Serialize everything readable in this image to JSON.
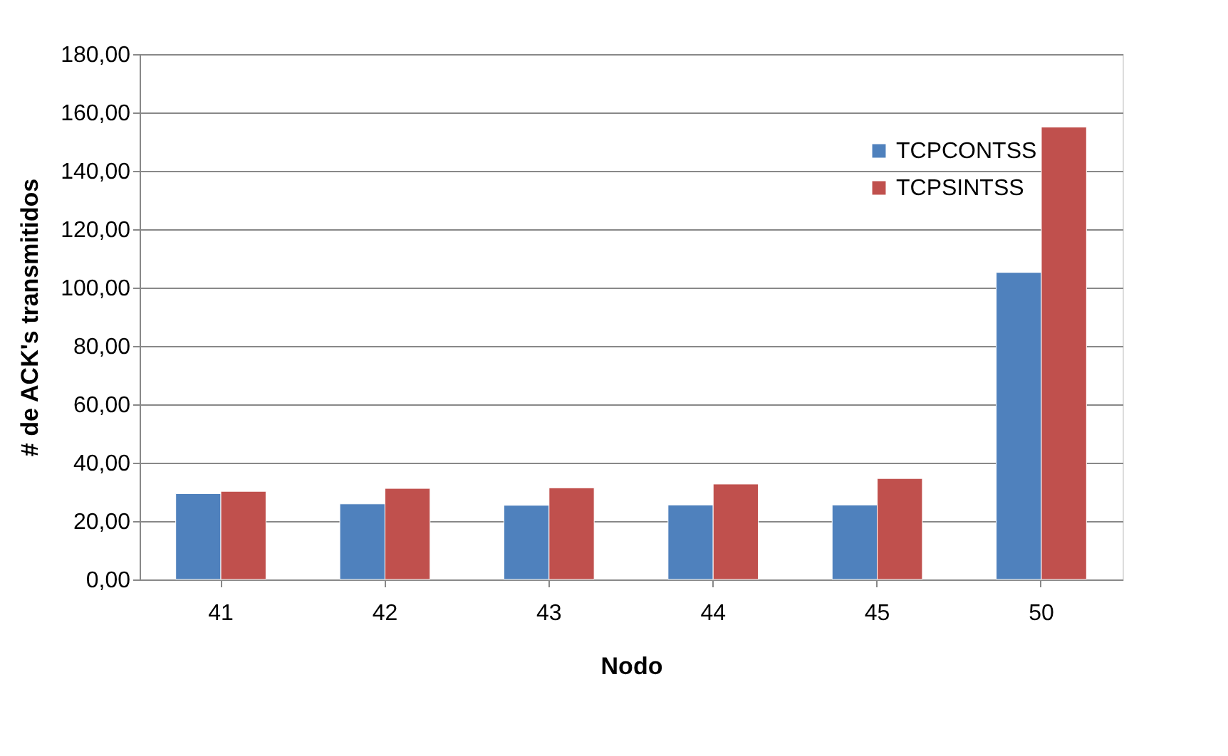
{
  "chart_data": {
    "type": "bar",
    "xlabel": "Nodo",
    "ylabel": "# de ACK's transmitidos",
    "categories": [
      "41",
      "42",
      "43",
      "44",
      "45",
      "50"
    ],
    "series": [
      {
        "name": "TCPCONTSS",
        "color": "#4f81bd",
        "values": [
          29.4,
          25.9,
          25.4,
          25.5,
          25.5,
          105.2
        ]
      },
      {
        "name": "TCPSINTSS",
        "color": "#c0504d",
        "values": [
          30.2,
          31.2,
          31.4,
          32.7,
          34.6,
          155.0
        ]
      }
    ],
    "ylim": [
      0,
      180
    ],
    "yticks": [
      {
        "value": 0,
        "label": "0,00"
      },
      {
        "value": 20,
        "label": "20,00"
      },
      {
        "value": 40,
        "label": "40,00"
      },
      {
        "value": 60,
        "label": "60,00"
      },
      {
        "value": 80,
        "label": "80,00"
      },
      {
        "value": 100,
        "label": "100,00"
      },
      {
        "value": 120,
        "label": "120,00"
      },
      {
        "value": 140,
        "label": "140,00"
      },
      {
        "value": 160,
        "label": "160,00"
      },
      {
        "value": 180,
        "label": "180,00"
      }
    ],
    "grid": "y",
    "legend": "top right"
  }
}
